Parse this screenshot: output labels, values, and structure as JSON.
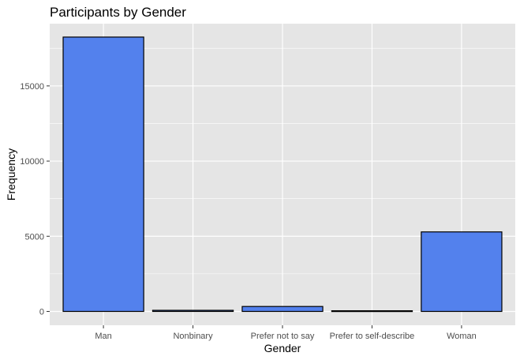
{
  "chart_data": {
    "type": "bar",
    "title": "Participants by Gender",
    "xlabel": "Gender",
    "ylabel": "Frequency",
    "categories": [
      "Man",
      "Nonbinary",
      "Prefer not to say",
      "Prefer to self-describe",
      "Woman"
    ],
    "values": [
      18250,
      75,
      330,
      45,
      5290
    ],
    "ylim": [
      -920,
      19140
    ],
    "yticks": [
      0,
      5000,
      10000,
      15000
    ],
    "ytick_labels": [
      "0",
      "5000",
      "10000",
      "15000"
    ],
    "grid": true,
    "bar_fill": "#5381ED",
    "bar_stroke": "#000000",
    "panel_background": "#E5E5E5",
    "gridline_color": "#FFFFFF"
  }
}
